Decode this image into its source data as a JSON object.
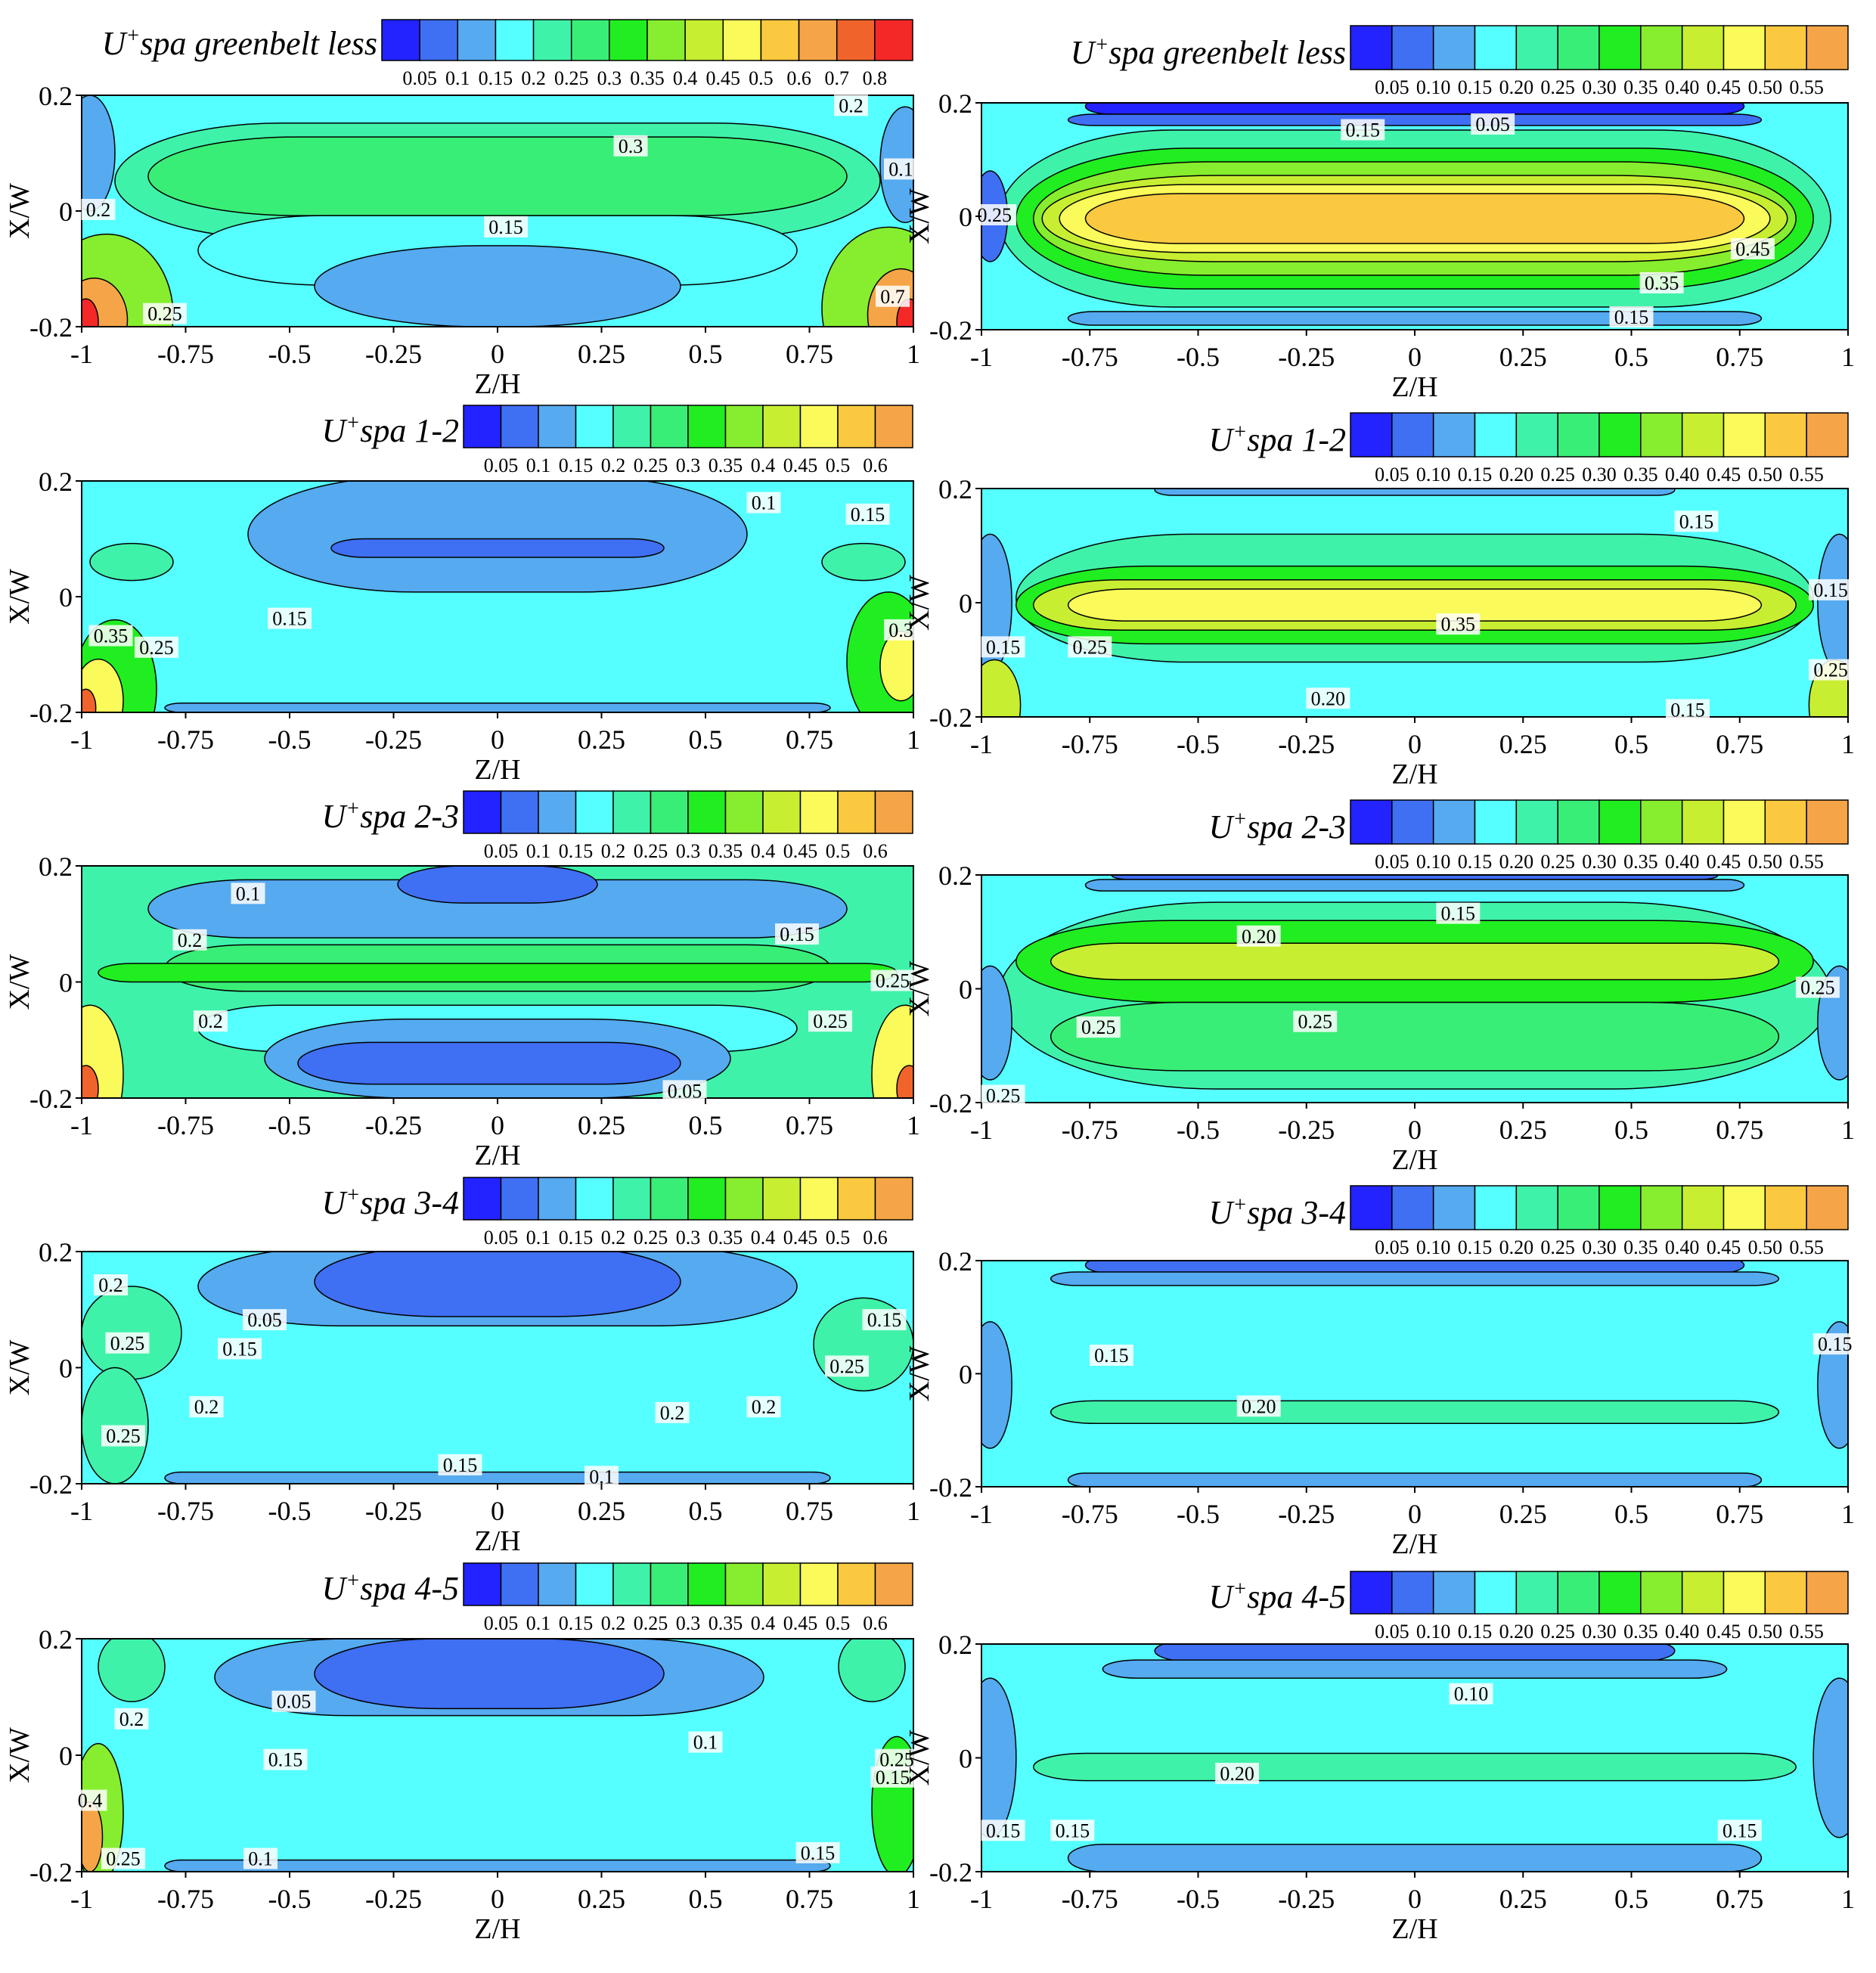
{
  "colormap": [
    "#2323ff",
    "#3f6ff2",
    "#55aaf0",
    "#55ffff",
    "#3ff2aa",
    "#39ee76",
    "#20ee20",
    "#86ee2e",
    "#c8ee32",
    "#fafa5a",
    "#fac93f",
    "#f5a547",
    "#f0642b",
    "#f52828"
  ],
  "common": {
    "xlabel": "Z/H",
    "ylabel": "X/W",
    "xticks": [
      "-1",
      "-0.75",
      "-0.5",
      "-0.25",
      "0",
      "0.25",
      "0.5",
      "0.75",
      "1"
    ],
    "yticks": [
      "0.2",
      "0",
      "-0.2"
    ]
  },
  "chart_data": [
    {
      "id": "L1",
      "type": "contour",
      "title": "spa greenbelt less",
      "x_range": [
        -1,
        1
      ],
      "y_range": [
        -0.2,
        0.2
      ],
      "legend_levels": [
        "0.05",
        "0.1",
        "0.15",
        "0.2",
        "0.25",
        "0.3",
        "0.35",
        "0.4",
        "0.45",
        "0.5",
        "0.6",
        "0.7",
        "0.8"
      ],
      "contour_labels": [
        {
          "text": "0.2",
          "z": 0.85,
          "x": 0.18
        },
        {
          "text": "0.3",
          "z": 0.32,
          "x": 0.11
        },
        {
          "text": "0.1",
          "z": 0.97,
          "x": 0.07
        },
        {
          "text": "0.2",
          "z": -0.96,
          "x": 0.0
        },
        {
          "text": "0.15",
          "z": 0.02,
          "x": -0.03
        },
        {
          "text": "0.25",
          "z": -0.8,
          "x": -0.18
        },
        {
          "text": "0.7",
          "z": 0.95,
          "x": -0.15
        }
      ]
    },
    {
      "id": "R1",
      "type": "contour",
      "title": "spa greenbelt less",
      "x_range": [
        -1,
        1
      ],
      "y_range": [
        -0.2,
        0.2
      ],
      "legend_levels": [
        "0.05",
        "0.10",
        "0.15",
        "0.20",
        "0.25",
        "0.30",
        "0.35",
        "0.40",
        "0.45",
        "0.50",
        "0.55"
      ],
      "contour_labels": [
        {
          "text": "0.15",
          "z": -0.12,
          "x": 0.15
        },
        {
          "text": "0.05",
          "z": 0.18,
          "x": 0.16
        },
        {
          "text": "0.25",
          "z": -0.97,
          "x": 0.0
        },
        {
          "text": "0.45",
          "z": 0.78,
          "x": -0.06
        },
        {
          "text": "0.35",
          "z": 0.57,
          "x": -0.12
        },
        {
          "text": "0.15",
          "z": 0.5,
          "x": -0.18
        }
      ]
    },
    {
      "id": "L2",
      "type": "contour",
      "title": "spa 1-2",
      "x_range": [
        -1,
        1
      ],
      "y_range": [
        -0.2,
        0.2
      ],
      "legend_levels": [
        "0.05",
        "0.1",
        "0.15",
        "0.2",
        "0.25",
        "0.3",
        "0.35",
        "0.4",
        "0.45",
        "0.5",
        "0.6"
      ],
      "contour_labels": [
        {
          "text": "0.1",
          "z": 0.64,
          "x": 0.16
        },
        {
          "text": "0.15",
          "z": 0.89,
          "x": 0.14
        },
        {
          "text": "0.15",
          "z": -0.5,
          "x": -0.04
        },
        {
          "text": "0.35",
          "z": -0.93,
          "x": -0.07
        },
        {
          "text": "0.25",
          "z": -0.82,
          "x": -0.09
        },
        {
          "text": "0.3",
          "z": 0.97,
          "x": -0.06
        }
      ]
    },
    {
      "id": "R2",
      "type": "contour",
      "title": "spa 1-2",
      "x_range": [
        -1,
        1
      ],
      "y_range": [
        -0.2,
        0.2
      ],
      "legend_levels": [
        "0.05",
        "0.10",
        "0.15",
        "0.20",
        "0.25",
        "0.30",
        "0.35",
        "0.40",
        "0.45",
        "0.50",
        "0.55"
      ],
      "contour_labels": [
        {
          "text": "0.15",
          "z": 0.65,
          "x": 0.14
        },
        {
          "text": "0.15",
          "z": 0.96,
          "x": 0.02
        },
        {
          "text": "0.35",
          "z": 0.1,
          "x": -0.04
        },
        {
          "text": "0.15",
          "z": -0.95,
          "x": -0.08
        },
        {
          "text": "0.25",
          "z": -0.75,
          "x": -0.08
        },
        {
          "text": "0.25",
          "z": 0.96,
          "x": -0.12
        },
        {
          "text": "0.20",
          "z": -0.2,
          "x": -0.17
        },
        {
          "text": "0.15",
          "z": 0.63,
          "x": -0.19
        }
      ]
    },
    {
      "id": "L3",
      "type": "contour",
      "title": "spa 2-3",
      "x_range": [
        -1,
        1
      ],
      "y_range": [
        -0.2,
        0.2
      ],
      "legend_levels": [
        "0.05",
        "0.1",
        "0.15",
        "0.2",
        "0.25",
        "0.3",
        "0.35",
        "0.4",
        "0.45",
        "0.5",
        "0.6"
      ],
      "contour_labels": [
        {
          "text": "0.1",
          "z": -0.6,
          "x": 0.15
        },
        {
          "text": "0.2",
          "z": -0.74,
          "x": 0.07
        },
        {
          "text": "0.15",
          "z": 0.72,
          "x": 0.08
        },
        {
          "text": "0.25",
          "z": 0.95,
          "x": 0.0
        },
        {
          "text": "0.2",
          "z": -0.69,
          "x": -0.07
        },
        {
          "text": "0.25",
          "z": 0.8,
          "x": -0.07
        },
        {
          "text": "0.05",
          "z": 0.45,
          "x": -0.19
        }
      ]
    },
    {
      "id": "R3",
      "type": "contour",
      "title": "spa 2-3",
      "x_range": [
        -1,
        1
      ],
      "y_range": [
        -0.2,
        0.2
      ],
      "legend_levels": [
        "0.05",
        "0.10",
        "0.15",
        "0.20",
        "0.25",
        "0.30",
        "0.35",
        "0.40",
        "0.45",
        "0.50",
        "0.55"
      ],
      "contour_labels": [
        {
          "text": "0.15",
          "z": 0.1,
          "x": 0.13
        },
        {
          "text": "0.20",
          "z": -0.36,
          "x": 0.09
        },
        {
          "text": "0.25",
          "z": 0.93,
          "x": 0.0
        },
        {
          "text": "0.25",
          "z": -0.73,
          "x": -0.07
        },
        {
          "text": "0.25",
          "z": -0.23,
          "x": -0.06
        },
        {
          "text": "0.25",
          "z": -0.95,
          "x": -0.19
        }
      ]
    },
    {
      "id": "L4",
      "type": "contour",
      "title": "spa 3-4",
      "x_range": [
        -1,
        1
      ],
      "y_range": [
        -0.2,
        0.2
      ],
      "legend_levels": [
        "0.05",
        "0.1",
        "0.15",
        "0.2",
        "0.25",
        "0.3",
        "0.35",
        "0.4",
        "0.45",
        "0.5",
        "0.6"
      ],
      "contour_labels": [
        {
          "text": "0.2",
          "z": -0.93,
          "x": 0.14
        },
        {
          "text": "0.05",
          "z": -0.56,
          "x": 0.08
        },
        {
          "text": "0.15",
          "z": 0.93,
          "x": 0.08
        },
        {
          "text": "0.25",
          "z": -0.89,
          "x": 0.04
        },
        {
          "text": "0.15",
          "z": -0.62,
          "x": 0.03
        },
        {
          "text": "0.25",
          "z": 0.84,
          "x": 0.0
        },
        {
          "text": "0.2",
          "z": -0.7,
          "x": -0.07
        },
        {
          "text": "0.2",
          "z": 0.42,
          "x": -0.08
        },
        {
          "text": "0.2",
          "z": 0.64,
          "x": -0.07
        },
        {
          "text": "0.25",
          "z": -0.9,
          "x": -0.12
        },
        {
          "text": "0.15",
          "z": -0.09,
          "x": -0.17
        },
        {
          "text": "0.1",
          "z": 0.25,
          "x": -0.19
        }
      ]
    },
    {
      "id": "R4",
      "type": "contour",
      "title": "spa 3-4",
      "x_range": [
        -1,
        1
      ],
      "y_range": [
        -0.2,
        0.2
      ],
      "legend_levels": [
        "0.05",
        "0.10",
        "0.15",
        "0.20",
        "0.25",
        "0.30",
        "0.35",
        "0.40",
        "0.45",
        "0.50",
        "0.55"
      ],
      "contour_labels": [
        {
          "text": "0.15",
          "z": -0.7,
          "x": 0.03
        },
        {
          "text": "0.15",
          "z": 0.97,
          "x": 0.05
        },
        {
          "text": "0.20",
          "z": -0.36,
          "x": -0.06
        }
      ]
    },
    {
      "id": "L5",
      "type": "contour",
      "title": "spa 4-5",
      "x_range": [
        -1,
        1
      ],
      "y_range": [
        -0.2,
        0.2
      ],
      "legend_levels": [
        "0.05",
        "0.1",
        "0.15",
        "0.2",
        "0.25",
        "0.3",
        "0.35",
        "0.4",
        "0.45",
        "0.5",
        "0.6"
      ],
      "contour_labels": [
        {
          "text": "0.2",
          "z": -0.88,
          "x": 0.06
        },
        {
          "text": "0.05",
          "z": -0.49,
          "x": 0.09
        },
        {
          "text": "0.1",
          "z": 0.5,
          "x": 0.02
        },
        {
          "text": "0.15",
          "z": -0.51,
          "x": -0.01
        },
        {
          "text": "0.25",
          "z": 0.96,
          "x": -0.01
        },
        {
          "text": "0.15",
          "z": 0.95,
          "x": -0.04
        },
        {
          "text": "0.4",
          "z": -0.98,
          "x": -0.08
        },
        {
          "text": "0.25",
          "z": -0.9,
          "x": -0.18
        },
        {
          "text": "0.1",
          "z": -0.57,
          "x": -0.18
        },
        {
          "text": "0.15",
          "z": 0.77,
          "x": -0.17
        }
      ]
    },
    {
      "id": "R5",
      "type": "contour",
      "title": "spa 4-5",
      "x_range": [
        -1,
        1
      ],
      "y_range": [
        -0.2,
        0.2
      ],
      "legend_levels": [
        "0.05",
        "0.10",
        "0.15",
        "0.20",
        "0.25",
        "0.30",
        "0.35",
        "0.40",
        "0.45",
        "0.50",
        "0.55"
      ],
      "contour_labels": [
        {
          "text": "0.10",
          "z": 0.13,
          "x": 0.11
        },
        {
          "text": "0.20",
          "z": -0.41,
          "x": -0.03
        },
        {
          "text": "0.15",
          "z": -0.95,
          "x": -0.13
        },
        {
          "text": "0.15",
          "z": -0.79,
          "x": -0.13
        },
        {
          "text": "0.15",
          "z": 0.75,
          "x": -0.13
        }
      ]
    }
  ]
}
